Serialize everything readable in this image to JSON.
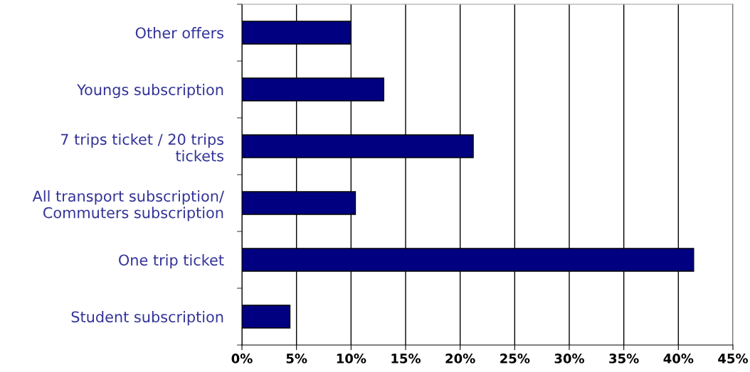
{
  "chart_data": {
    "type": "bar",
    "orientation": "horizontal",
    "categories": [
      "Other offers",
      "Youngs subscription",
      "7 trips ticket / 20 trips\ntickets",
      "All transport subscription/\nCommuters subscription",
      "One trip ticket",
      "Student subscription"
    ],
    "values": [
      10.0,
      13.0,
      21.2,
      10.4,
      41.4,
      4.4
    ],
    "color": "#000080",
    "xlim": [
      0,
      45
    ],
    "xticks": [
      {
        "value": 0,
        "label": "0%"
      },
      {
        "value": 5,
        "label": "5%"
      },
      {
        "value": 10,
        "label": "10%"
      },
      {
        "value": 15,
        "label": "15%"
      },
      {
        "value": 20,
        "label": "20%"
      },
      {
        "value": 25,
        "label": "25%"
      },
      {
        "value": 30,
        "label": "30%"
      },
      {
        "value": 35,
        "label": "35%"
      },
      {
        "value": 40,
        "label": "40%"
      },
      {
        "value": 45,
        "label": "45%"
      }
    ],
    "grid": "x"
  }
}
